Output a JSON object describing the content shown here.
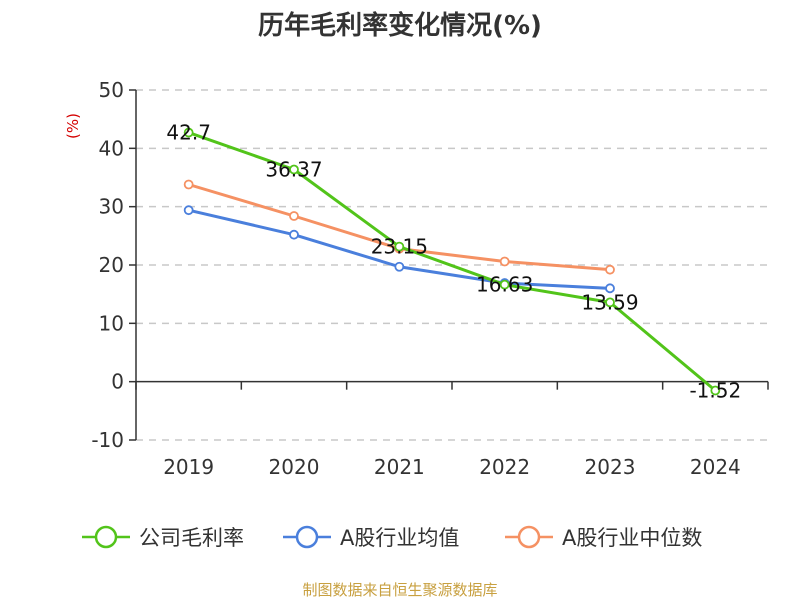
{
  "chart_data": {
    "type": "line",
    "title": "历年毛利率变化情况(%)",
    "unit_label": "(%)",
    "categories": [
      "2019",
      "2020",
      "2021",
      "2022",
      "2023",
      "2024"
    ],
    "ylim": [
      -10,
      50
    ],
    "yticks": [
      -10,
      0,
      10,
      20,
      30,
      40,
      50
    ],
    "grid": true,
    "legend_position": "bottom",
    "series": [
      {
        "name": "公司毛利率",
        "color": "#52c41a",
        "values": [
          42.7,
          36.37,
          23.15,
          16.63,
          13.59,
          -1.52
        ],
        "labels": [
          "42.7",
          "36.37",
          "23.15",
          "16.63",
          "13.59",
          "-1.52"
        ]
      },
      {
        "name": "A股行业均值",
        "color": "#4a7fdc",
        "values": [
          29.4,
          25.2,
          19.7,
          16.9,
          16.0,
          null
        ]
      },
      {
        "name": "A股行业中位数",
        "color": "#f59163",
        "values": [
          33.8,
          28.4,
          22.8,
          20.6,
          19.2,
          null
        ]
      }
    ],
    "source": "制图数据来自恒生聚源数据库"
  }
}
